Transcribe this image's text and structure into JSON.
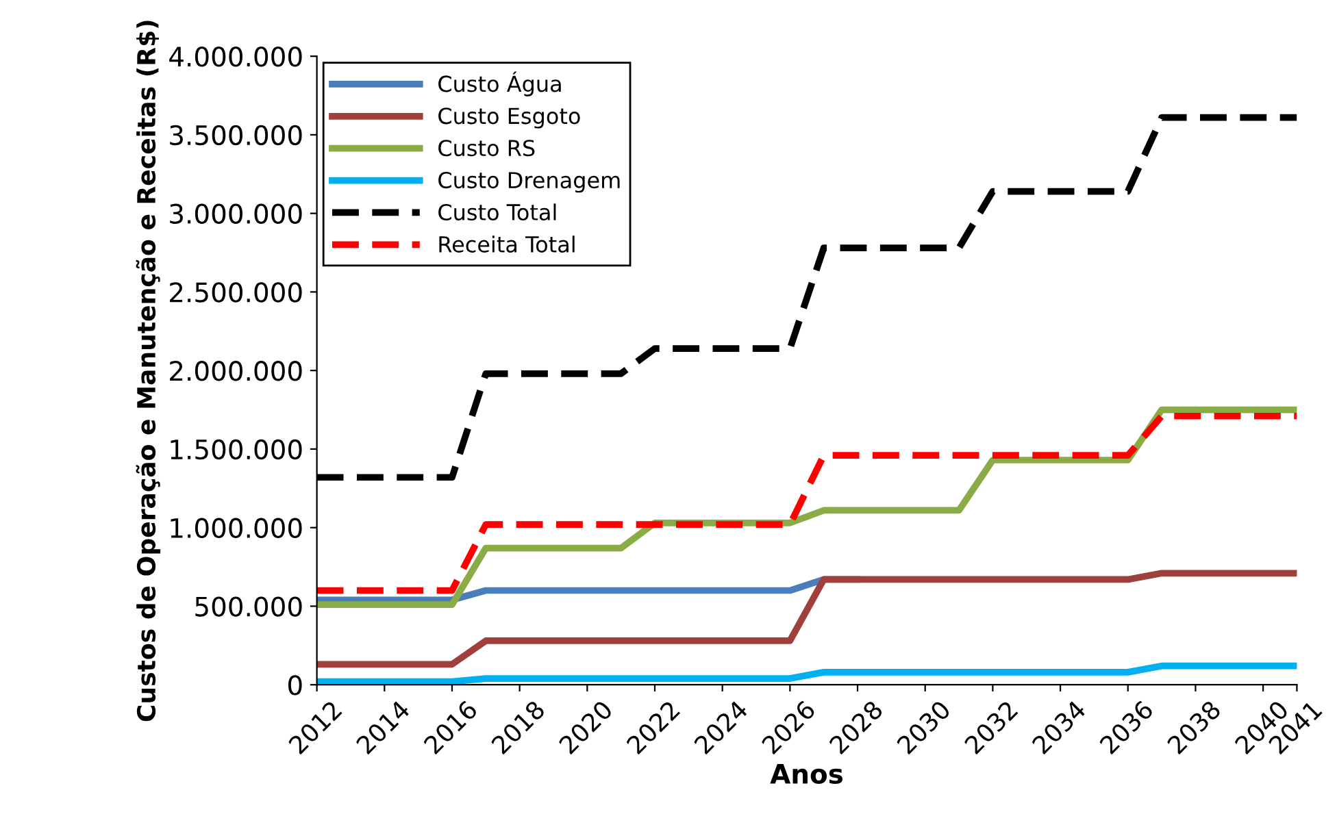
{
  "chart_data": {
    "type": "line",
    "xlabel": "Anos",
    "ylabel": "Custos de Operação e Manutenção e Receitas (R$)",
    "x": [
      2012,
      2013,
      2014,
      2015,
      2016,
      2017,
      2018,
      2019,
      2020,
      2021,
      2022,
      2023,
      2024,
      2025,
      2026,
      2027,
      2028,
      2029,
      2030,
      2031,
      2032,
      2033,
      2034,
      2035,
      2036,
      2037,
      2038,
      2039,
      2040,
      2041
    ],
    "series": [
      {
        "name": "Custo Água",
        "color": "#4a7ebb",
        "line_style": "solid",
        "values": [
          540000,
          540000,
          540000,
          540000,
          540000,
          600000,
          600000,
          600000,
          600000,
          600000,
          600000,
          600000,
          600000,
          600000,
          600000,
          670000,
          670000,
          null,
          null,
          null,
          null,
          null,
          null,
          null,
          null,
          null,
          null,
          null,
          null,
          null
        ]
      },
      {
        "name": "Custo Esgoto",
        "color": "#a0403d",
        "line_style": "solid",
        "values": [
          130000,
          130000,
          130000,
          130000,
          130000,
          280000,
          280000,
          280000,
          280000,
          280000,
          280000,
          280000,
          280000,
          280000,
          280000,
          670000,
          670000,
          670000,
          670000,
          670000,
          670000,
          670000,
          670000,
          670000,
          670000,
          710000,
          710000,
          710000,
          710000,
          710000
        ]
      },
      {
        "name": "Custo RS",
        "color": "#8aac46",
        "line_style": "solid",
        "values": [
          510000,
          510000,
          510000,
          510000,
          510000,
          870000,
          870000,
          870000,
          870000,
          870000,
          1030000,
          1030000,
          1030000,
          1030000,
          1030000,
          1110000,
          1110000,
          1110000,
          1110000,
          1110000,
          1430000,
          1430000,
          1430000,
          1430000,
          1430000,
          1750000,
          1750000,
          1750000,
          1750000,
          1750000
        ]
      },
      {
        "name": "Custo Drenagem",
        "color": "#00b0f0",
        "line_style": "solid",
        "values": [
          20000,
          20000,
          20000,
          20000,
          20000,
          40000,
          40000,
          40000,
          40000,
          40000,
          40000,
          40000,
          40000,
          40000,
          40000,
          80000,
          80000,
          80000,
          80000,
          80000,
          80000,
          80000,
          80000,
          80000,
          80000,
          120000,
          120000,
          120000,
          120000,
          120000
        ]
      },
      {
        "name": "Custo Total",
        "color": "#000000",
        "line_style": "dashed",
        "values": [
          1320000,
          1320000,
          1320000,
          1320000,
          1320000,
          1980000,
          1980000,
          1980000,
          1980000,
          1980000,
          2140000,
          2140000,
          2140000,
          2140000,
          2140000,
          2780000,
          2780000,
          2780000,
          2780000,
          2780000,
          3140000,
          3140000,
          3140000,
          3140000,
          3140000,
          3610000,
          3610000,
          3610000,
          3610000,
          3610000
        ]
      },
      {
        "name": "Receita Total",
        "color": "#ff0000",
        "line_style": "dashed",
        "values": [
          600000,
          600000,
          600000,
          600000,
          600000,
          1020000,
          1020000,
          1020000,
          1020000,
          1020000,
          1020000,
          1020000,
          1020000,
          1020000,
          1020000,
          1460000,
          1460000,
          1460000,
          1460000,
          1460000,
          1460000,
          1460000,
          1460000,
          1460000,
          1460000,
          1710000,
          1710000,
          1710000,
          1710000,
          1710000
        ]
      }
    ],
    "xlim": [
      2012,
      2041
    ],
    "xticks": [
      2012,
      2014,
      2016,
      2018,
      2020,
      2022,
      2024,
      2026,
      2028,
      2030,
      2032,
      2034,
      2036,
      2038,
      2040,
      2041
    ],
    "ylim": [
      0,
      4000000
    ],
    "yticks": [
      {
        "value": 0,
        "label": "0"
      },
      {
        "value": 500000,
        "label": "500.000"
      },
      {
        "value": 1000000,
        "label": "1.000.000"
      },
      {
        "value": 1500000,
        "label": "1.500.000"
      },
      {
        "value": 2000000,
        "label": "2.000.000"
      },
      {
        "value": 2500000,
        "label": "2.500.000"
      },
      {
        "value": 3000000,
        "label": "3.000.000"
      },
      {
        "value": 3500000,
        "label": "3.500.000"
      },
      {
        "value": 4000000,
        "label": "4.000.000"
      }
    ],
    "grid": false,
    "legend": "top left",
    "marker": "none"
  }
}
